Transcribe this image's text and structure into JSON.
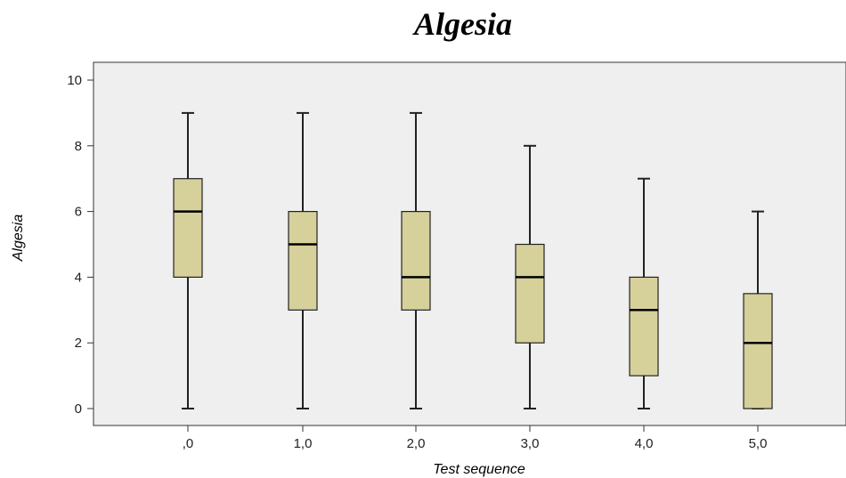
{
  "chart_data": {
    "type": "boxplot",
    "title": "Algesia",
    "xlabel": "Test sequence",
    "ylabel": "Algesia",
    "ylim": [
      0,
      10
    ],
    "yticks": [
      0,
      2,
      4,
      6,
      8,
      10
    ],
    "categories": [
      ",0",
      "1,0",
      "2,0",
      "3,0",
      "4,0",
      "5,0"
    ],
    "boxes": [
      {
        "min": 0,
        "q1": 4,
        "median": 6,
        "q3": 7,
        "max": 9
      },
      {
        "min": 0,
        "q1": 3,
        "median": 5,
        "q3": 6,
        "max": 9
      },
      {
        "min": 0,
        "q1": 3,
        "median": 4,
        "q3": 6,
        "max": 9
      },
      {
        "min": 0,
        "q1": 2,
        "median": 4,
        "q3": 5,
        "max": 8
      },
      {
        "min": 0,
        "q1": 1,
        "median": 3,
        "q3": 4,
        "max": 7
      },
      {
        "min": 0,
        "q1": 0,
        "median": 2,
        "q3": 3.5,
        "max": 6
      }
    ],
    "grid": false,
    "colors": {
      "box_fill": "#d6d09a",
      "plot_background": "#efefef",
      "line": "#222222"
    }
  }
}
